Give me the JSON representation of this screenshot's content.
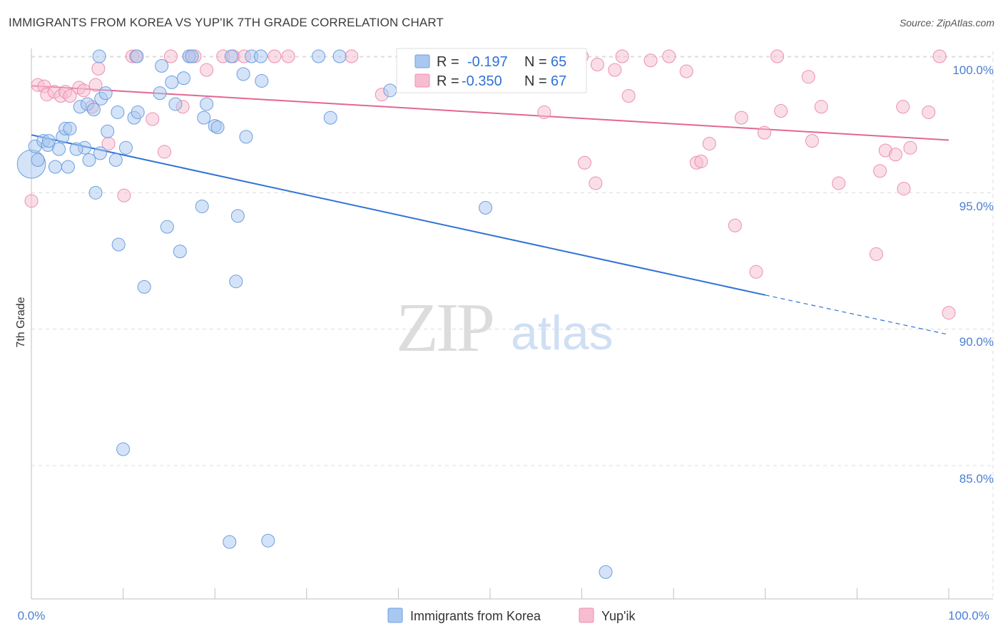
{
  "header": {
    "title": "IMMIGRANTS FROM KOREA VS YUP'IK 7TH GRADE CORRELATION CHART",
    "source": "Source: ZipAtlas.com"
  },
  "watermark": {
    "zip": "ZIP",
    "atlas": "atlas"
  },
  "colors": {
    "korea_fill": "#a9c8f0",
    "korea_stroke": "#6c9fe0",
    "korea_line": "#2f72d6",
    "yupik_fill": "#f6bdd0",
    "yupik_stroke": "#ec8fb0",
    "yupik_line": "#e26791",
    "grid": "#dcdcdc",
    "tick_label": "#4a7fd1"
  },
  "chart_data": {
    "type": "scatter",
    "title": "IMMIGRANTS FROM KOREA VS YUP'IK 7TH GRADE CORRELATION CHART",
    "xlabel": "",
    "ylabel": "7th Grade",
    "xlim": [
      0,
      100
    ],
    "ylim": [
      80.3,
      100.9
    ],
    "x_tick_labels": [
      "0.0%",
      "100.0%"
    ],
    "y_ticks": [
      85,
      90,
      95,
      100
    ],
    "y_tick_labels": [
      "85.0%",
      "90.0%",
      "95.0%",
      "100.0%"
    ],
    "grid": true,
    "legend_stats": [
      {
        "r_label": "R =",
        "r_value": "-0.197",
        "n_label": "N =",
        "n_value": "65"
      },
      {
        "r_label": "R =",
        "r_value": "-0.350",
        "n_label": "N =",
        "n_value": "67"
      }
    ],
    "series": [
      {
        "name": "Immigrants from Korea",
        "r": -0.197,
        "n": 65,
        "trend": {
          "x0": 0,
          "y0": 97.12,
          "x1": 80,
          "y1": 91.25,
          "dash_to_x": 100,
          "dash_to_y": 89.8
        },
        "points": [
          [
            0.0,
            96.05,
            2.2
          ],
          [
            0.4,
            96.7,
            1
          ],
          [
            0.7,
            96.2,
            1
          ],
          [
            1.3,
            96.9,
            1
          ],
          [
            1.8,
            96.75,
            1
          ],
          [
            2.6,
            95.95,
            1
          ],
          [
            3.0,
            96.6,
            1
          ],
          [
            3.4,
            97.05,
            1
          ],
          [
            3.7,
            97.35,
            1
          ],
          [
            4.0,
            95.95,
            1
          ],
          [
            4.2,
            97.35,
            1
          ],
          [
            5.3,
            98.15,
            1
          ],
          [
            5.8,
            96.65,
            1
          ],
          [
            6.1,
            98.25,
            1
          ],
          [
            6.3,
            96.2,
            1
          ],
          [
            6.8,
            98.05,
            1
          ],
          [
            7.0,
            95.0,
            1
          ],
          [
            7.5,
            96.45,
            1
          ],
          [
            7.6,
            98.45,
            1
          ],
          [
            8.1,
            98.65,
            1
          ],
          [
            8.3,
            97.25,
            1
          ],
          [
            9.2,
            96.2,
            1
          ],
          [
            9.5,
            93.1,
            1
          ],
          [
            9.4,
            97.95,
            1
          ],
          [
            10.0,
            85.6,
            1
          ],
          [
            10.3,
            96.65,
            1
          ],
          [
            11.2,
            97.75,
            1
          ],
          [
            11.6,
            97.95,
            1
          ],
          [
            12.3,
            91.55,
            1
          ],
          [
            14.0,
            98.65,
            1
          ],
          [
            14.2,
            99.65,
            1
          ],
          [
            14.8,
            93.75,
            1
          ],
          [
            15.3,
            99.05,
            1
          ],
          [
            15.7,
            98.25,
            1
          ],
          [
            16.2,
            92.85,
            1
          ],
          [
            16.6,
            99.2,
            1
          ],
          [
            17.2,
            100.0,
            1
          ],
          [
            17.5,
            100.0,
            1
          ],
          [
            18.6,
            94.5,
            1
          ],
          [
            18.8,
            97.75,
            1
          ],
          [
            19.1,
            98.25,
            1
          ],
          [
            20.0,
            97.45,
            1
          ],
          [
            20.3,
            97.4,
            1
          ],
          [
            21.6,
            82.2,
            1
          ],
          [
            21.8,
            100.0,
            1
          ],
          [
            22.3,
            91.75,
            1
          ],
          [
            22.5,
            94.15,
            1
          ],
          [
            23.1,
            99.35,
            1
          ],
          [
            23.4,
            97.05,
            1
          ],
          [
            24.0,
            100.0,
            1
          ],
          [
            25.1,
            99.1,
            1
          ],
          [
            25.8,
            82.25,
            1
          ],
          [
            25.0,
            100.0,
            1
          ],
          [
            31.3,
            100.0,
            1
          ],
          [
            32.6,
            97.75,
            1
          ],
          [
            33.6,
            100.0,
            1
          ],
          [
            39.1,
            98.75,
            1
          ],
          [
            42.8,
            100.0,
            1
          ],
          [
            49.5,
            94.45,
            1
          ],
          [
            49.3,
            100.0,
            1
          ],
          [
            62.6,
            81.1,
            1
          ],
          [
            7.4,
            100.0,
            1
          ],
          [
            1.9,
            96.9,
            1
          ],
          [
            11.5,
            100.0,
            1
          ],
          [
            4.9,
            96.6,
            1
          ]
        ]
      },
      {
        "name": "Yup'ik",
        "r": -0.35,
        "n": 67,
        "trend": {
          "x0": 0,
          "y0": 98.92,
          "x1": 100,
          "y1": 96.93
        },
        "points": [
          [
            0.0,
            94.7,
            1
          ],
          [
            0.7,
            98.95,
            1
          ],
          [
            1.4,
            98.9,
            1
          ],
          [
            1.7,
            98.6,
            1
          ],
          [
            2.5,
            98.7,
            1
          ],
          [
            3.2,
            98.55,
            1
          ],
          [
            3.7,
            98.7,
            1
          ],
          [
            4.2,
            98.55,
            1
          ],
          [
            5.2,
            98.85,
            1
          ],
          [
            5.7,
            98.75,
            1
          ],
          [
            6.6,
            98.15,
            1
          ],
          [
            7.0,
            98.95,
            1
          ],
          [
            7.3,
            99.55,
            1
          ],
          [
            8.4,
            96.8,
            1
          ],
          [
            10.1,
            94.9,
            1
          ],
          [
            11.0,
            100.0,
            1
          ],
          [
            11.4,
            100.0,
            1
          ],
          [
            13.2,
            97.7,
            1
          ],
          [
            14.5,
            96.5,
            1
          ],
          [
            15.2,
            100.0,
            1
          ],
          [
            16.5,
            98.15,
            1
          ],
          [
            17.2,
            100.0,
            1
          ],
          [
            17.8,
            100.0,
            1
          ],
          [
            19.1,
            99.5,
            1
          ],
          [
            20.9,
            100.0,
            1
          ],
          [
            22.0,
            100.0,
            1
          ],
          [
            23.2,
            100.0,
            1
          ],
          [
            26.5,
            100.0,
            1
          ],
          [
            28.0,
            100.0,
            1
          ],
          [
            34.9,
            100.0,
            1
          ],
          [
            38.2,
            98.6,
            1
          ],
          [
            46.2,
            100.0,
            1
          ],
          [
            55.1,
            100.0,
            1
          ],
          [
            55.9,
            97.95,
            1
          ],
          [
            60.0,
            100.0,
            1
          ],
          [
            60.3,
            96.1,
            1
          ],
          [
            61.7,
            99.7,
            1
          ],
          [
            61.5,
            95.35,
            1
          ],
          [
            63.6,
            99.5,
            1
          ],
          [
            64.4,
            100.0,
            1
          ],
          [
            65.1,
            98.55,
            1
          ],
          [
            67.5,
            99.85,
            1
          ],
          [
            69.5,
            100.0,
            1
          ],
          [
            71.4,
            99.45,
            1
          ],
          [
            72.5,
            96.1,
            1
          ],
          [
            73.0,
            96.15,
            1
          ],
          [
            73.9,
            96.8,
            1
          ],
          [
            76.7,
            93.8,
            1
          ],
          [
            77.4,
            97.75,
            1
          ],
          [
            79.0,
            92.1,
            1
          ],
          [
            79.9,
            97.2,
            1
          ],
          [
            81.3,
            100.0,
            1
          ],
          [
            81.7,
            98.0,
            1
          ],
          [
            84.7,
            99.25,
            1
          ],
          [
            85.1,
            96.9,
            1
          ],
          [
            86.1,
            98.15,
            1
          ],
          [
            88.0,
            95.35,
            1
          ],
          [
            92.1,
            92.75,
            1
          ],
          [
            92.5,
            95.8,
            1
          ],
          [
            93.1,
            96.55,
            1
          ],
          [
            94.2,
            96.4,
            1
          ],
          [
            95.1,
            95.15,
            1
          ],
          [
            95.0,
            98.15,
            1
          ],
          [
            95.8,
            96.65,
            1
          ],
          [
            97.8,
            97.95,
            1
          ],
          [
            99.0,
            100.0,
            1
          ],
          [
            100.0,
            90.6,
            1
          ]
        ]
      }
    ]
  },
  "legend_bottom": [
    "Immigrants from Korea",
    "Yup'ik"
  ]
}
